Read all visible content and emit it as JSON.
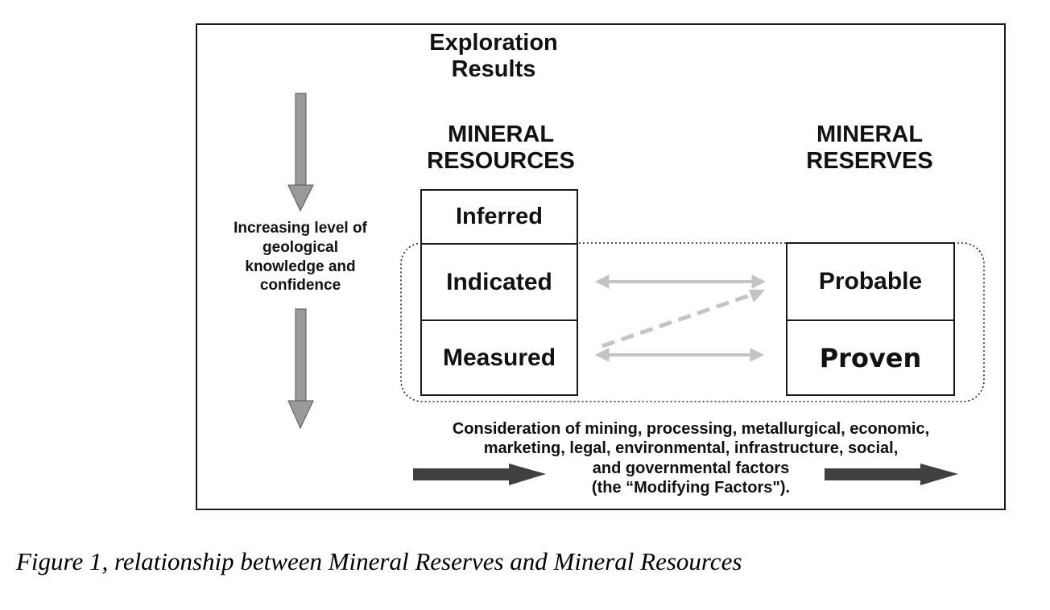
{
  "diagram": {
    "exploration_results": [
      "Exploration",
      "Results"
    ],
    "mineral_resources": [
      "MINERAL",
      "RESOURCES"
    ],
    "mineral_reserves": [
      "MINERAL",
      "RESERVES"
    ],
    "side_label": [
      "Increasing level of",
      "geological",
      "knowledge and",
      "confidence"
    ],
    "resources_boxes": {
      "inferred": "Inferred",
      "indicated": "Indicated",
      "measured": "Measured"
    },
    "reserves_boxes": {
      "probable": "Probable",
      "proven": "Proven"
    },
    "modifying_factors": [
      "Consideration of mining, processing, metallurgical, economic,",
      "marketing, legal, environmental, infrastructure, social,",
      "and governmental factors",
      "(the “Modifying Factors\")."
    ],
    "colors": {
      "grey_arrow": "#9a9a9a",
      "light_arrow": "#c4c4c4",
      "dark_arrow": "#404040",
      "border": "#1a1a1a"
    }
  },
  "caption": "Figure 1, relationship between Mineral Reserves and Mineral Resources"
}
